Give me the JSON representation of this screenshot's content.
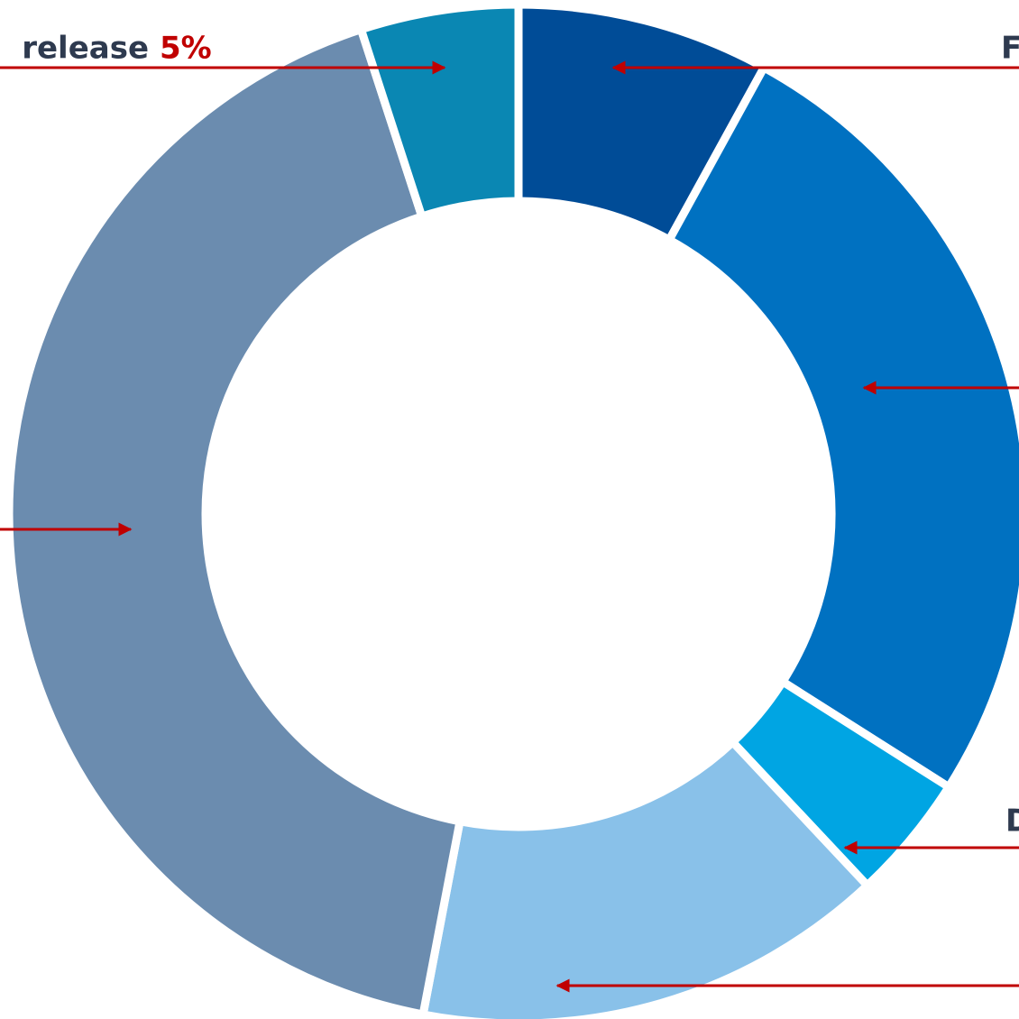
{
  "chart_data": {
    "type": "donut",
    "categories": [
      "F",
      null,
      "D",
      null,
      null,
      "release"
    ],
    "values": [
      8,
      26,
      4,
      15,
      42,
      5
    ],
    "value_labels": [
      null,
      null,
      null,
      null,
      null,
      "5%"
    ],
    "colors": [
      "#004c97",
      "#0071c1",
      "#00a5e3",
      "#89c1e9",
      "#6b8caf",
      "#0a87b3"
    ]
  }
}
